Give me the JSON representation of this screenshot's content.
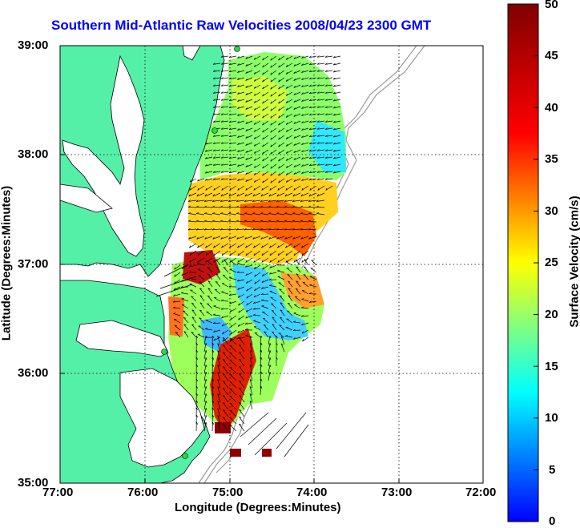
{
  "map": {
    "title": "Southern Mid-Atlantic Raw Velocities 2008/04/23 2300 GMT",
    "x_axis_label": "Longitude (Degrees:Minutes)",
    "y_axis_label": "Latitude (Degrees:Minutes)",
    "x_ticks": [
      "77:00",
      "76:00",
      "75:00",
      "74:00",
      "73:00",
      "72:00"
    ],
    "y_ticks": [
      "39:00",
      "38:00",
      "37:00",
      "36:00",
      "35:00"
    ],
    "colors": {
      "land": "#55f0a8",
      "water": "#ffffff",
      "frame": "#000000",
      "grid": "#000000",
      "bathymetry": "#9a9a9a",
      "station_marker": "#22dd44",
      "title": "#0000ff"
    }
  },
  "colorbar": {
    "label": "Surface Velocity (cm/s)",
    "ticks": [
      "50",
      "45",
      "40",
      "35",
      "30",
      "25",
      "20",
      "15",
      "10",
      "5",
      "0"
    ],
    "range": [
      0,
      50
    ],
    "colormap": "jet"
  }
}
